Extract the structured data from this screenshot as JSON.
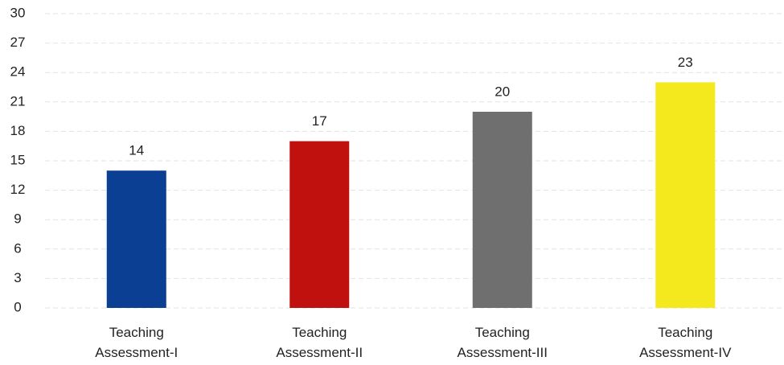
{
  "chart_data": {
    "type": "bar",
    "categories": [
      "Teaching Assessment-I",
      "Teaching Assessment-II",
      "Teaching Assessment-III",
      "Teaching Assessment-IV"
    ],
    "values": [
      14,
      17,
      20,
      23
    ],
    "colors": [
      "#0b3f93",
      "#c1110f",
      "#6f6f6f",
      "#f4e91c"
    ],
    "ylim": [
      0,
      30
    ],
    "yticks": [
      0,
      3,
      6,
      9,
      12,
      15,
      18,
      21,
      24,
      27,
      30
    ],
    "grid": true
  }
}
